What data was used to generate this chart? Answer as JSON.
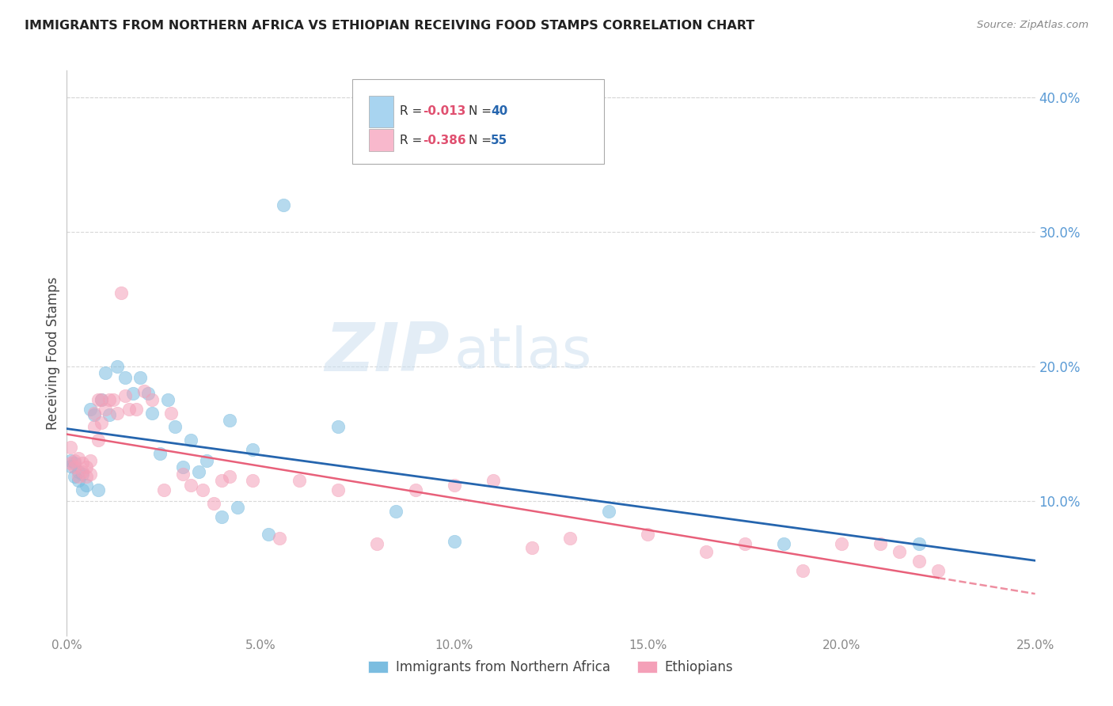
{
  "title": "IMMIGRANTS FROM NORTHERN AFRICA VS ETHIOPIAN RECEIVING FOOD STAMPS CORRELATION CHART",
  "source": "Source: ZipAtlas.com",
  "ylabel_left": "Receiving Food Stamps",
  "xlim": [
    0.0,
    0.25
  ],
  "ylim": [
    0.0,
    0.42
  ],
  "xticks": [
    0.0,
    0.05,
    0.1,
    0.15,
    0.2,
    0.25
  ],
  "yticks_right": [
    0.1,
    0.2,
    0.3,
    0.4
  ],
  "ytick_labels_right": [
    "10.0%",
    "20.0%",
    "30.0%",
    "40.0%"
  ],
  "xtick_labels": [
    "0.0%",
    "5.0%",
    "10.0%",
    "15.0%",
    "20.0%",
    "25.0%"
  ],
  "legend1_r": "R = -0.013",
  "legend1_n": "N = 40",
  "legend2_r": "R = -0.386",
  "legend2_n": "N = 55",
  "watermark_zip": "ZIP",
  "watermark_atlas": "atlas",
  "blue_color": "#7bbde0",
  "pink_color": "#f4a0b8",
  "trend_blue_color": "#2565ae",
  "trend_pink_color": "#e8607a",
  "blue_x": [
    0.001,
    0.001,
    0.002,
    0.002,
    0.003,
    0.003,
    0.004,
    0.004,
    0.005,
    0.006,
    0.007,
    0.008,
    0.009,
    0.01,
    0.011,
    0.013,
    0.015,
    0.017,
    0.019,
    0.021,
    0.022,
    0.024,
    0.026,
    0.028,
    0.03,
    0.032,
    0.034,
    0.036,
    0.04,
    0.042,
    0.044,
    0.048,
    0.052,
    0.056,
    0.07,
    0.085,
    0.1,
    0.14,
    0.185,
    0.22
  ],
  "blue_y": [
    0.13,
    0.126,
    0.128,
    0.118,
    0.122,
    0.115,
    0.108,
    0.12,
    0.112,
    0.168,
    0.164,
    0.108,
    0.175,
    0.195,
    0.164,
    0.2,
    0.192,
    0.18,
    0.192,
    0.18,
    0.165,
    0.135,
    0.175,
    0.155,
    0.125,
    0.145,
    0.122,
    0.13,
    0.088,
    0.16,
    0.095,
    0.138,
    0.075,
    0.32,
    0.155,
    0.092,
    0.07,
    0.092,
    0.068,
    0.068
  ],
  "pink_x": [
    0.001,
    0.001,
    0.002,
    0.002,
    0.003,
    0.003,
    0.004,
    0.004,
    0.005,
    0.005,
    0.006,
    0.006,
    0.007,
    0.007,
    0.008,
    0.008,
    0.009,
    0.009,
    0.01,
    0.011,
    0.012,
    0.013,
    0.014,
    0.015,
    0.016,
    0.018,
    0.02,
    0.022,
    0.025,
    0.027,
    0.03,
    0.032,
    0.035,
    0.038,
    0.04,
    0.042,
    0.048,
    0.055,
    0.06,
    0.07,
    0.08,
    0.09,
    0.1,
    0.11,
    0.12,
    0.13,
    0.15,
    0.165,
    0.175,
    0.19,
    0.2,
    0.21,
    0.215,
    0.22,
    0.225
  ],
  "pink_y": [
    0.14,
    0.128,
    0.13,
    0.125,
    0.132,
    0.118,
    0.122,
    0.128,
    0.118,
    0.125,
    0.13,
    0.12,
    0.165,
    0.155,
    0.175,
    0.145,
    0.175,
    0.158,
    0.168,
    0.175,
    0.175,
    0.165,
    0.255,
    0.178,
    0.168,
    0.168,
    0.182,
    0.175,
    0.108,
    0.165,
    0.12,
    0.112,
    0.108,
    0.098,
    0.115,
    0.118,
    0.115,
    0.072,
    0.115,
    0.108,
    0.068,
    0.108,
    0.112,
    0.115,
    0.065,
    0.072,
    0.075,
    0.062,
    0.068,
    0.048,
    0.068,
    0.068,
    0.062,
    0.055,
    0.048
  ],
  "bottom_legend_labels": [
    "Immigrants from Northern Africa",
    "Ethiopians"
  ],
  "bottom_legend_colors": [
    "#7bbde0",
    "#f4a0b8"
  ],
  "legend_patch_blue": "#a8d4f0",
  "legend_patch_pink": "#f8b8cc",
  "axis_color": "#cccccc",
  "grid_color": "#d8d8d8",
  "tick_label_color_x": "#888888",
  "tick_label_color_y": "#5b9bd5",
  "r_value_color": "#e05070",
  "n_value_color": "#2565ae"
}
